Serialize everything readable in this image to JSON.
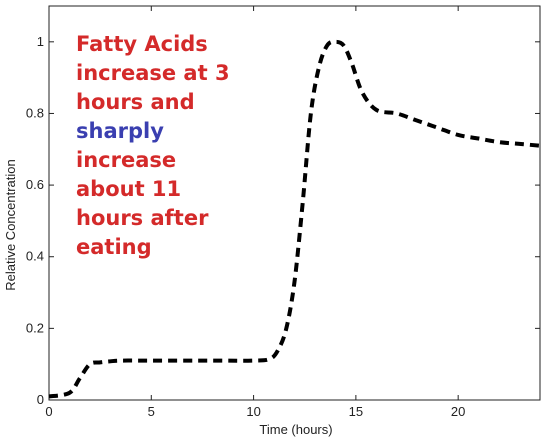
{
  "chart_data": {
    "type": "line",
    "xlabel": "Time (hours)",
    "ylabel": "Relative Concentration",
    "xlim": [
      0,
      24
    ],
    "ylim": [
      0,
      1.1
    ],
    "xticks": [
      0,
      5,
      10,
      15,
      20
    ],
    "yticks": [
      0,
      0.2,
      0.4,
      0.6,
      0.8,
      1
    ],
    "ytick_labels": [
      "0",
      "0.2",
      "0.4",
      "0.6",
      "0.8",
      "1"
    ],
    "grid": false,
    "series": [
      {
        "line_style": "dashed",
        "color": "#000000",
        "x": [
          0,
          1,
          1.5,
          2,
          2.5,
          3,
          3.5,
          5,
          8,
          10,
          10.8,
          11.2,
          11.6,
          12,
          12.4,
          12.8,
          13.2,
          13.6,
          14,
          14.4,
          14.8,
          15.3,
          16,
          17,
          18,
          19,
          20,
          21,
          22,
          23,
          24
        ],
        "y": [
          0.01,
          0.02,
          0.06,
          0.1,
          0.105,
          0.108,
          0.11,
          0.11,
          0.11,
          0.11,
          0.115,
          0.14,
          0.2,
          0.33,
          0.55,
          0.8,
          0.93,
          0.99,
          1.0,
          0.99,
          0.94,
          0.86,
          0.81,
          0.8,
          0.78,
          0.76,
          0.74,
          0.73,
          0.72,
          0.715,
          0.71
        ]
      }
    ],
    "annotation": {
      "line1": "Fatty Acids",
      "line2": "increase at 3",
      "line3": "hours and",
      "line4_emph": "sharply",
      "line5": "increase",
      "line6": "about 11",
      "line7": "hours after",
      "line8": "eating",
      "color": "#d42a2a",
      "emph_color": "#3a3fb0"
    }
  }
}
